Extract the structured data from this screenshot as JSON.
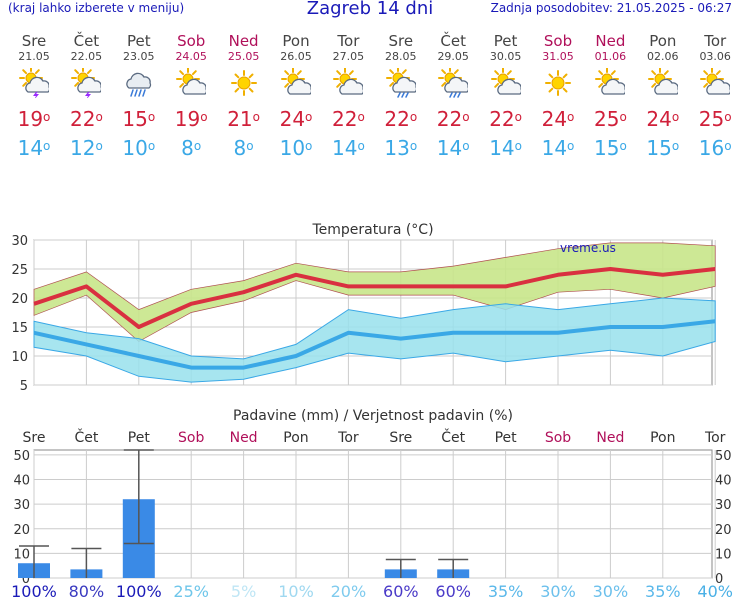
{
  "header": {
    "note": "(kraj lahko izberete v meniju)",
    "title": "Zagreb 14 dni",
    "updated": "Zadnja posodobitev: 21.05.2025 - 06:27"
  },
  "days": [
    {
      "name": "Sre",
      "date": "21.05",
      "icon": "sun-cloud-storm-icon",
      "tmax": "19",
      "tmin": "14",
      "weekend": false
    },
    {
      "name": "Čet",
      "date": "22.05",
      "icon": "sun-cloud-storm-icon",
      "tmax": "22",
      "tmin": "12",
      "weekend": false
    },
    {
      "name": "Pet",
      "date": "23.05",
      "icon": "cloud-rain-icon",
      "tmax": "15",
      "tmin": "10",
      "weekend": false
    },
    {
      "name": "Sob",
      "date": "24.05",
      "icon": "sun-cloud-icon",
      "tmax": "19",
      "tmin": "8",
      "weekend": true
    },
    {
      "name": "Ned",
      "date": "25.05",
      "icon": "sun-icon",
      "tmax": "21",
      "tmin": "8",
      "weekend": true
    },
    {
      "name": "Pon",
      "date": "26.05",
      "icon": "sun-cloud-icon",
      "tmax": "24",
      "tmin": "10",
      "weekend": false
    },
    {
      "name": "Tor",
      "date": "27.05",
      "icon": "sun-cloud-icon",
      "tmax": "22",
      "tmin": "14",
      "weekend": false
    },
    {
      "name": "Sre",
      "date": "28.05",
      "icon": "sun-cloud-rain-icon",
      "tmax": "22",
      "tmin": "13",
      "weekend": false
    },
    {
      "name": "Čet",
      "date": "29.05",
      "icon": "sun-cloud-rain-icon",
      "tmax": "22",
      "tmin": "14",
      "weekend": false
    },
    {
      "name": "Pet",
      "date": "30.05",
      "icon": "sun-cloud-icon",
      "tmax": "22",
      "tmin": "14",
      "weekend": false
    },
    {
      "name": "Sob",
      "date": "31.05",
      "icon": "sun-icon",
      "tmax": "24",
      "tmin": "14",
      "weekend": true
    },
    {
      "name": "Ned",
      "date": "01.06",
      "icon": "sun-cloud-icon",
      "tmax": "25",
      "tmin": "15",
      "weekend": true
    },
    {
      "name": "Pon",
      "date": "02.06",
      "icon": "sun-cloud-icon",
      "tmax": "24",
      "tmin": "15",
      "weekend": false
    },
    {
      "name": "Tor",
      "date": "03.06",
      "icon": "sun-cloud-icon",
      "tmax": "25",
      "tmin": "16",
      "weekend": false
    }
  ],
  "chart_data": [
    {
      "type": "line",
      "title": "Temperatura (°C)",
      "watermark": "vreme.us",
      "ylim": [
        5,
        30
      ],
      "yticks": [
        5,
        10,
        15,
        20,
        25,
        30
      ],
      "grid": true,
      "series": [
        {
          "values": [
            19,
            22,
            15,
            19,
            21,
            24,
            22,
            22,
            22,
            22,
            24,
            25,
            24,
            25
          ],
          "color": "#d93040"
        },
        {
          "values": [
            14,
            12,
            10,
            8,
            8,
            10,
            14,
            13,
            14,
            14,
            14,
            15,
            15,
            16
          ],
          "color": "#3aa8e6"
        }
      ],
      "max_band": {
        "upper": [
          21.5,
          24.5,
          18,
          21.5,
          23,
          26,
          24.5,
          24.5,
          25.5,
          27,
          28.5,
          29.5,
          29.5,
          29
        ],
        "lower": [
          17,
          20.5,
          12.5,
          17.5,
          19.5,
          23,
          20.5,
          20.5,
          20.5,
          18,
          21,
          21.5,
          20,
          22
        ],
        "fill": "#c8e68a"
      },
      "min_band": {
        "upper": [
          16,
          14,
          13,
          10,
          9.5,
          12,
          18,
          16.5,
          18,
          19,
          18,
          19,
          20,
          19.5
        ],
        "lower": [
          11.5,
          10,
          6.5,
          5.5,
          6,
          8,
          10.5,
          9.5,
          10.5,
          9,
          10,
          11,
          10,
          12.5
        ],
        "fill": "#98e0ec"
      }
    },
    {
      "type": "bar",
      "title": "Padavine (mm) / Verjetnost padavin (%)",
      "categories": [
        "Sre",
        "Čet",
        "Pet",
        "Sob",
        "Ned",
        "Pon",
        "Tor",
        "Sre",
        "Čet",
        "Pet",
        "Sob",
        "Ned",
        "Pon",
        "Tor"
      ],
      "weekend": [
        false,
        false,
        false,
        true,
        true,
        false,
        false,
        false,
        false,
        false,
        true,
        true,
        false,
        false
      ],
      "ylim": [
        0,
        52
      ],
      "yticks": [
        0,
        10,
        20,
        30,
        40,
        50
      ],
      "values": [
        6,
        3.5,
        32,
        0,
        0,
        0,
        0,
        3.5,
        3.5,
        0,
        0,
        0,
        0,
        0
      ],
      "error_low": [
        0,
        0,
        14,
        0,
        0,
        0,
        0,
        0,
        0,
        0,
        0,
        0,
        0,
        0
      ],
      "error_high": [
        13,
        12,
        52,
        0,
        0,
        0,
        0,
        7.5,
        7.5,
        0,
        0,
        0,
        0,
        0
      ],
      "probability": [
        "100%",
        "80%",
        "100%",
        "25%",
        "5%",
        "10%",
        "20%",
        "60%",
        "60%",
        "35%",
        "30%",
        "30%",
        "35%",
        "40%"
      ],
      "prob_colors": [
        "#1a1ab8",
        "#3a3ac0",
        "#1a1ab8",
        "#6fc6ea",
        "#bfe6f5",
        "#9fd8f0",
        "#7fcbee",
        "#4a3ac8",
        "#4a3ac8",
        "#5ab8ea",
        "#6cc0ec",
        "#6cc0ec",
        "#5ab8ea",
        "#4ab0e6"
      ],
      "bar_color": "#3a8ae6"
    }
  ]
}
